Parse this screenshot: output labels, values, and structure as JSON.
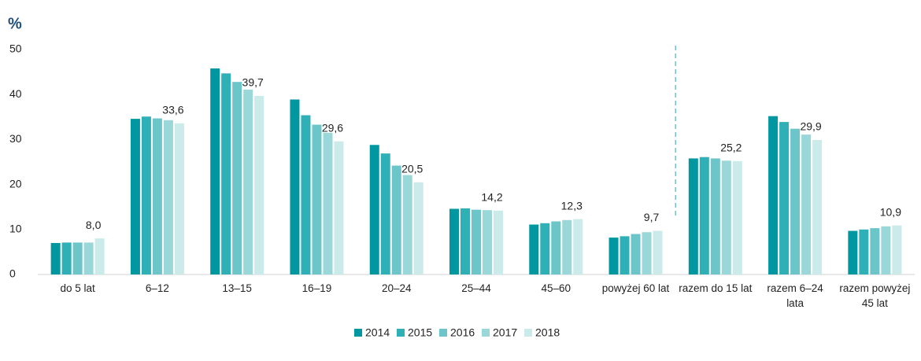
{
  "chart_data": {
    "type": "bar",
    "y_label": "%",
    "categories": [
      "do 5 lat",
      "6–12",
      "13–15",
      "16–19",
      "20–24",
      "25–44",
      "45–60",
      "powyżej 60 lat",
      "razem do 15 lat",
      "razem 6–24 lata",
      "razem powyżej 45 lat"
    ],
    "series": [
      {
        "name": "2014",
        "color": "#0097a0",
        "values": [
          7.0,
          34.6,
          45.8,
          38.9,
          28.8,
          14.6,
          11.1,
          8.2,
          25.8,
          35.2,
          9.7
        ]
      },
      {
        "name": "2015",
        "color": "#2fb0b7",
        "values": [
          7.1,
          35.1,
          44.7,
          35.4,
          26.9,
          14.7,
          11.4,
          8.5,
          26.1,
          33.9,
          10.0
        ]
      },
      {
        "name": "2016",
        "color": "#6cc6c9",
        "values": [
          7.1,
          34.7,
          42.8,
          33.3,
          24.2,
          14.4,
          11.8,
          9.0,
          25.8,
          32.4,
          10.3
        ]
      },
      {
        "name": "2017",
        "color": "#9ad7d8",
        "values": [
          7.1,
          34.3,
          41.1,
          31.5,
          22.1,
          14.3,
          12.1,
          9.4,
          25.3,
          31.1,
          10.7
        ]
      },
      {
        "name": "2018",
        "color": "#cbeaea",
        "values": [
          8.0,
          33.6,
          39.7,
          29.6,
          20.5,
          14.2,
          12.3,
          9.7,
          25.2,
          29.9,
          10.9
        ],
        "value_labels": [
          "8,0",
          "33,6",
          "39,7",
          "29,6",
          "20,5",
          "14,2",
          "12,3",
          "9,7",
          "25,2",
          "29,9",
          "10,9"
        ]
      }
    ],
    "ylim": [
      0,
      50
    ],
    "yticks": [
      0,
      10,
      20,
      30,
      40,
      50
    ],
    "grid": false,
    "legend": "bottom"
  }
}
